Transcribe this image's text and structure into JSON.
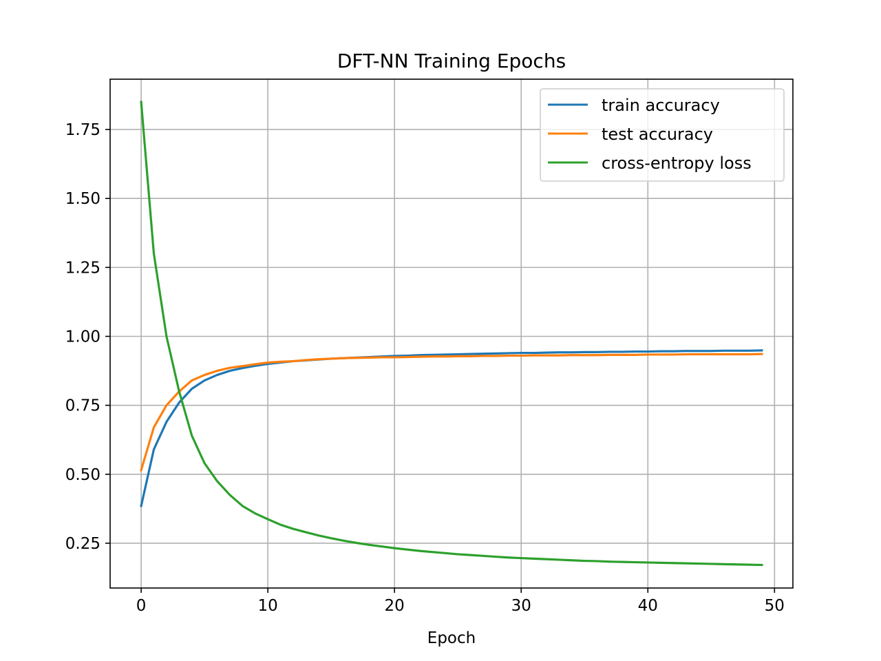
{
  "chart_data": {
    "type": "line",
    "title": "DFT-NN Training Epochs",
    "xlabel": "Epoch",
    "ylabel": "",
    "xlim": [
      -2.45,
      51.45
    ],
    "ylim": [
      0.0875,
      1.9325
    ],
    "xticks": [
      0,
      10,
      20,
      30,
      40,
      50
    ],
    "yticks": [
      0.25,
      0.5,
      0.75,
      1.0,
      1.25,
      1.5,
      1.75
    ],
    "xtick_labels": [
      "0",
      "10",
      "20",
      "30",
      "40",
      "50"
    ],
    "ytick_labels": [
      "0.25",
      "0.50",
      "0.75",
      "1.00",
      "1.25",
      "1.50",
      "1.75"
    ],
    "grid": true,
    "legend_position": "top-right",
    "x": [
      0,
      1,
      2,
      3,
      4,
      5,
      6,
      7,
      8,
      9,
      10,
      11,
      12,
      13,
      14,
      15,
      16,
      17,
      18,
      19,
      20,
      21,
      22,
      23,
      24,
      25,
      26,
      27,
      28,
      29,
      30,
      31,
      32,
      33,
      34,
      35,
      36,
      37,
      38,
      39,
      40,
      41,
      42,
      43,
      44,
      45,
      46,
      47,
      48,
      49
    ],
    "series": [
      {
        "name": "train accuracy",
        "color": "#1f77b4",
        "values": [
          0.385,
          0.59,
          0.69,
          0.76,
          0.81,
          0.84,
          0.86,
          0.875,
          0.885,
          0.893,
          0.9,
          0.905,
          0.91,
          0.913,
          0.916,
          0.919,
          0.921,
          0.923,
          0.925,
          0.927,
          0.929,
          0.93,
          0.932,
          0.933,
          0.934,
          0.935,
          0.936,
          0.937,
          0.938,
          0.939,
          0.94,
          0.94,
          0.941,
          0.942,
          0.942,
          0.943,
          0.943,
          0.944,
          0.944,
          0.945,
          0.945,
          0.946,
          0.946,
          0.947,
          0.947,
          0.947,
          0.948,
          0.948,
          0.948,
          0.949
        ]
      },
      {
        "name": "test accuracy",
        "color": "#ff7f0e",
        "values": [
          0.515,
          0.67,
          0.75,
          0.8,
          0.84,
          0.86,
          0.875,
          0.886,
          0.892,
          0.899,
          0.905,
          0.908,
          0.91,
          0.914,
          0.917,
          0.919,
          0.921,
          0.922,
          0.923,
          0.924,
          0.924,
          0.925,
          0.926,
          0.927,
          0.927,
          0.928,
          0.928,
          0.929,
          0.929,
          0.93,
          0.93,
          0.931,
          0.931,
          0.931,
          0.932,
          0.932,
          0.932,
          0.933,
          0.933,
          0.933,
          0.934,
          0.934,
          0.934,
          0.935,
          0.935,
          0.935,
          0.935,
          0.935,
          0.935,
          0.936
        ]
      },
      {
        "name": "cross-entropy loss",
        "color": "#2ca02c",
        "values": [
          1.85,
          1.3,
          1.0,
          0.8,
          0.64,
          0.54,
          0.475,
          0.425,
          0.385,
          0.358,
          0.337,
          0.317,
          0.302,
          0.29,
          0.278,
          0.268,
          0.259,
          0.251,
          0.244,
          0.238,
          0.232,
          0.227,
          0.222,
          0.218,
          0.214,
          0.21,
          0.207,
          0.204,
          0.201,
          0.198,
          0.196,
          0.194,
          0.192,
          0.19,
          0.188,
          0.186,
          0.185,
          0.183,
          0.182,
          0.181,
          0.18,
          0.179,
          0.178,
          0.177,
          0.176,
          0.175,
          0.174,
          0.173,
          0.172,
          0.171
        ]
      }
    ]
  }
}
